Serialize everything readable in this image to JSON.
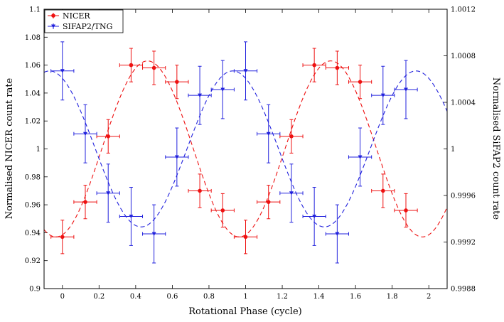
{
  "chart_data": {
    "type": "scatter",
    "title": "",
    "xlabel": "Rotational Phase (cycle)",
    "ylabel_left": "Normalised NICER count rate",
    "ylabel_right": "Normalised SiFAP2 count rate",
    "xlim": [
      -0.1,
      2.1
    ],
    "ylim_left": [
      0.9,
      1.1
    ],
    "ylim_right": [
      0.9988,
      1.0012
    ],
    "x_ticks": [
      0,
      0.2,
      0.4,
      0.6,
      0.8,
      1,
      1.2,
      1.4,
      1.6,
      1.8,
      2
    ],
    "x_tick_labels": [
      "0",
      "0.2",
      "0.4",
      "0.6",
      "0.8",
      "1",
      "1.2",
      "1.4",
      "1.6",
      "1.8",
      "2"
    ],
    "y_left_ticks": [
      0.9,
      0.92,
      0.94,
      0.96,
      0.98,
      1,
      1.02,
      1.04,
      1.06,
      1.08,
      1.1
    ],
    "y_left_tick_labels": [
      "0.9",
      "0.92",
      "0.94",
      "0.96",
      "0.98",
      "1",
      "1.02",
      "1.04",
      "1.06",
      "1.08",
      "1.1"
    ],
    "y_right_ticks": [
      0.9988,
      0.9992,
      0.9996,
      1,
      1.0004,
      1.0008,
      1.0012
    ],
    "y_right_tick_labels": [
      "0.9988",
      "0.9992",
      "0.9996",
      "1",
      "1.0004",
      "1.0008",
      "1.0012"
    ],
    "legend_position": "top-left",
    "series": [
      {
        "name": "NICER",
        "color": "#ee1111",
        "marker": "circle",
        "axis": "left",
        "x": [
          0,
          0.125,
          0.25,
          0.375,
          0.5,
          0.625,
          0.75,
          0.875,
          1,
          1.125,
          1.25,
          1.375,
          1.5,
          1.625,
          1.75,
          1.875
        ],
        "y": [
          0.937,
          0.962,
          1.009,
          1.06,
          1.058,
          1.048,
          0.97,
          0.956,
          0.937,
          0.962,
          1.009,
          1.06,
          1.058,
          1.048,
          0.97,
          0.956
        ],
        "xerr": 0.0625,
        "yerr": 0.012,
        "model": {
          "mean": 1.0,
          "amplitude": 0.063,
          "peak_phase": 0.465
        }
      },
      {
        "name": "SIFAP2/TNG",
        "color": "#2222dd",
        "marker": "triangle-down",
        "axis": "right",
        "x": [
          0,
          0.125,
          0.25,
          0.375,
          0.5,
          0.625,
          0.75,
          0.875,
          1,
          1.125,
          1.25,
          1.375,
          1.5,
          1.625,
          1.75,
          1.875
        ],
        "y": [
          1.00067,
          1.00013,
          0.99962,
          0.99942,
          0.99927,
          0.99993,
          1.00046,
          1.00051,
          1.00067,
          1.00013,
          0.99962,
          0.99942,
          0.99927,
          0.99993,
          1.00046,
          1.00051
        ],
        "xerr": 0.0625,
        "yerr": 0.00025,
        "model": {
          "mean": 1.0,
          "amplitude": 0.00067,
          "peak_phase": 0.93
        }
      }
    ]
  }
}
